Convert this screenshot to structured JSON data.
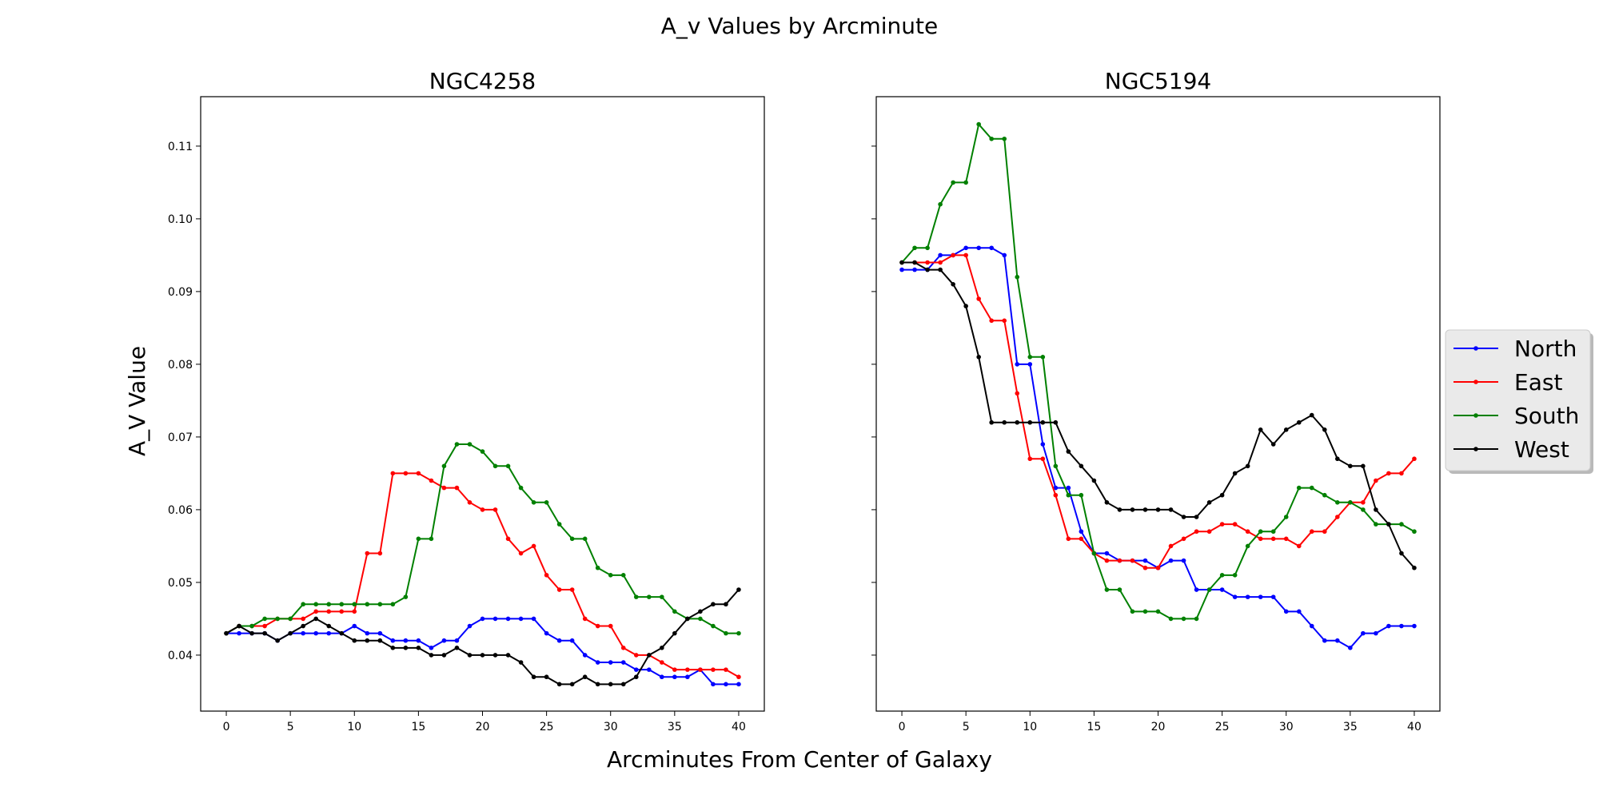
{
  "figure": {
    "title": "A_v Values by Arcminute",
    "xlabel": "Arcminutes From Center of Galaxy",
    "ylabel": "A_V Value"
  },
  "legend": {
    "placement": "center-right",
    "items": [
      {
        "label": "North",
        "color": "#0000ff"
      },
      {
        "label": "East",
        "color": "#ff0000"
      },
      {
        "label": "South",
        "color": "#008000"
      },
      {
        "label": "West",
        "color": "#000000"
      }
    ]
  },
  "chart_data": [
    {
      "type": "line",
      "title": "NGC4258",
      "xlim": [
        -2,
        42
      ],
      "ylim": [
        0.0323,
        0.1168
      ],
      "xticks": [
        0,
        5,
        10,
        15,
        20,
        25,
        30,
        35,
        40
      ],
      "yticks": [
        0.04,
        0.05,
        0.06,
        0.07,
        0.08,
        0.09,
        0.1,
        0.11
      ],
      "ytick_labels": [
        "0.04",
        "0.05",
        "0.06",
        "0.07",
        "0.08",
        "0.09",
        "0.10",
        "0.11"
      ],
      "show_ytick_labels": true,
      "grid": false,
      "x": [
        0,
        1,
        2,
        3,
        4,
        5,
        6,
        7,
        8,
        9,
        10,
        11,
        12,
        13,
        14,
        15,
        16,
        17,
        18,
        19,
        20,
        21,
        22,
        23,
        24,
        25,
        26,
        27,
        28,
        29,
        30,
        31,
        32,
        33,
        34,
        35,
        36,
        37,
        38,
        39,
        40
      ],
      "series": [
        {
          "name": "North",
          "color": "#0000ff",
          "values": [
            0.043,
            0.043,
            0.043,
            0.043,
            0.042,
            0.043,
            0.043,
            0.043,
            0.043,
            0.043,
            0.044,
            0.043,
            0.043,
            0.042,
            0.042,
            0.042,
            0.041,
            0.042,
            0.042,
            0.044,
            0.045,
            0.045,
            0.045,
            0.045,
            0.045,
            0.043,
            0.042,
            0.042,
            0.04,
            0.039,
            0.039,
            0.039,
            0.038,
            0.038,
            0.037,
            0.037,
            0.037,
            0.038,
            0.036,
            0.036,
            0.036
          ]
        },
        {
          "name": "East",
          "color": "#ff0000",
          "values": [
            0.043,
            0.044,
            0.044,
            0.044,
            0.045,
            0.045,
            0.045,
            0.046,
            0.046,
            0.046,
            0.046,
            0.054,
            0.054,
            0.065,
            0.065,
            0.065,
            0.064,
            0.063,
            0.063,
            0.061,
            0.06,
            0.06,
            0.056,
            0.054,
            0.055,
            0.051,
            0.049,
            0.049,
            0.045,
            0.044,
            0.044,
            0.041,
            0.04,
            0.04,
            0.039,
            0.038,
            0.038,
            0.038,
            0.038,
            0.038,
            0.037
          ]
        },
        {
          "name": "South",
          "color": "#008000",
          "values": [
            0.043,
            0.044,
            0.044,
            0.045,
            0.045,
            0.045,
            0.047,
            0.047,
            0.047,
            0.047,
            0.047,
            0.047,
            0.047,
            0.047,
            0.048,
            0.056,
            0.056,
            0.066,
            0.069,
            0.069,
            0.068,
            0.066,
            0.066,
            0.063,
            0.061,
            0.061,
            0.058,
            0.056,
            0.056,
            0.052,
            0.051,
            0.051,
            0.048,
            0.048,
            0.048,
            0.046,
            0.045,
            0.045,
            0.044,
            0.043,
            0.043
          ]
        },
        {
          "name": "West",
          "color": "#000000",
          "values": [
            0.043,
            0.044,
            0.043,
            0.043,
            0.042,
            0.043,
            0.044,
            0.045,
            0.044,
            0.043,
            0.042,
            0.042,
            0.042,
            0.041,
            0.041,
            0.041,
            0.04,
            0.04,
            0.041,
            0.04,
            0.04,
            0.04,
            0.04,
            0.039,
            0.037,
            0.037,
            0.036,
            0.036,
            0.037,
            0.036,
            0.036,
            0.036,
            0.037,
            0.04,
            0.041,
            0.043,
            0.045,
            0.046,
            0.047,
            0.047,
            0.049
          ]
        }
      ]
    },
    {
      "type": "line",
      "title": "NGC5194",
      "xlim": [
        -2,
        42
      ],
      "ylim": [
        0.0323,
        0.1168
      ],
      "xticks": [
        0,
        5,
        10,
        15,
        20,
        25,
        30,
        35,
        40
      ],
      "yticks": [
        0.04,
        0.05,
        0.06,
        0.07,
        0.08,
        0.09,
        0.1,
        0.11
      ],
      "show_ytick_labels": false,
      "grid": false,
      "x": [
        0,
        1,
        2,
        3,
        4,
        5,
        6,
        7,
        8,
        9,
        10,
        11,
        12,
        13,
        14,
        15,
        16,
        17,
        18,
        19,
        20,
        21,
        22,
        23,
        24,
        25,
        26,
        27,
        28,
        29,
        30,
        31,
        32,
        33,
        34,
        35,
        36,
        37,
        38,
        39,
        40
      ],
      "series": [
        {
          "name": "North",
          "color": "#0000ff",
          "values": [
            0.093,
            0.093,
            0.093,
            0.095,
            0.095,
            0.096,
            0.096,
            0.096,
            0.095,
            0.08,
            0.08,
            0.069,
            0.063,
            0.063,
            0.057,
            0.054,
            0.054,
            0.053,
            0.053,
            0.053,
            0.052,
            0.053,
            0.053,
            0.049,
            0.049,
            0.049,
            0.048,
            0.048,
            0.048,
            0.048,
            0.046,
            0.046,
            0.044,
            0.042,
            0.042,
            0.041,
            0.043,
            0.043,
            0.044,
            0.044,
            0.044
          ]
        },
        {
          "name": "East",
          "color": "#ff0000",
          "values": [
            0.094,
            0.094,
            0.094,
            0.094,
            0.095,
            0.095,
            0.089,
            0.086,
            0.086,
            0.076,
            0.067,
            0.067,
            0.062,
            0.056,
            0.056,
            0.054,
            0.053,
            0.053,
            0.053,
            0.052,
            0.052,
            0.055,
            0.056,
            0.057,
            0.057,
            0.058,
            0.058,
            0.057,
            0.056,
            0.056,
            0.056,
            0.055,
            0.057,
            0.057,
            0.059,
            0.061,
            0.061,
            0.064,
            0.065,
            0.065,
            0.067
          ]
        },
        {
          "name": "South",
          "color": "#008000",
          "values": [
            0.094,
            0.096,
            0.096,
            0.102,
            0.105,
            0.105,
            0.113,
            0.111,
            0.111,
            0.092,
            0.081,
            0.081,
            0.066,
            0.062,
            0.062,
            0.054,
            0.049,
            0.049,
            0.046,
            0.046,
            0.046,
            0.045,
            0.045,
            0.045,
            0.049,
            0.051,
            0.051,
            0.055,
            0.057,
            0.057,
            0.059,
            0.063,
            0.063,
            0.062,
            0.061,
            0.061,
            0.06,
            0.058,
            0.058,
            0.058,
            0.057
          ]
        },
        {
          "name": "West",
          "color": "#000000",
          "values": [
            0.094,
            0.094,
            0.093,
            0.093,
            0.091,
            0.088,
            0.081,
            0.072,
            0.072,
            0.072,
            0.072,
            0.072,
            0.072,
            0.068,
            0.066,
            0.064,
            0.061,
            0.06,
            0.06,
            0.06,
            0.06,
            0.06,
            0.059,
            0.059,
            0.061,
            0.062,
            0.065,
            0.066,
            0.071,
            0.069,
            0.071,
            0.072,
            0.073,
            0.071,
            0.067,
            0.066,
            0.066,
            0.06,
            0.058,
            0.054,
            0.052
          ]
        }
      ]
    }
  ]
}
